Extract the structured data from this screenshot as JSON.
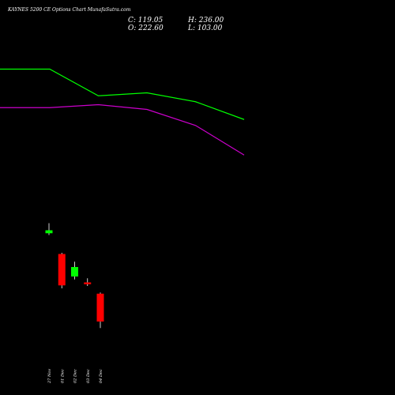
{
  "chart_data": {
    "type": "candlestick",
    "title": "KAYNES 5200  CE Options  Chart MunafaSutra.com",
    "ohlc_readout": {
      "c_label": "C: 119.05",
      "h_label": "H: 236.00",
      "o_label": "O: 222.60",
      "l_label": "L: 103.00"
    },
    "categories": [
      "27 Nov",
      "01 Dec",
      "02 Dec",
      "03 Dec",
      "04 Dec"
    ],
    "candles": [
      {
        "date": "27 Nov",
        "open": 253,
        "high": 270,
        "low": 250,
        "close": 258,
        "color": "#00ff00"
      },
      {
        "date": "01 Dec",
        "open": 218,
        "high": 220,
        "low": 160,
        "close": 165,
        "color": "#ff0000"
      },
      {
        "date": "02 Dec",
        "open": 180,
        "high": 205,
        "low": 175,
        "close": 196,
        "color": "#00ff00"
      },
      {
        "date": "03 Dec",
        "open": 170,
        "high": 177,
        "low": 164,
        "close": 167,
        "color": "#ff0000"
      },
      {
        "date": "04 Dec",
        "open": 151,
        "high": 153,
        "low": 93,
        "close": 104,
        "color": "#ff0000"
      }
    ],
    "ma_series": [
      {
        "color": "#00ff00",
        "points": [
          [
            -1.2,
            530
          ],
          [
            0.0,
            530
          ],
          [
            1.0,
            485
          ],
          [
            2.0,
            490
          ],
          [
            3.0,
            475
          ],
          [
            4.0,
            445
          ]
        ]
      },
      {
        "color": "#cc00cc",
        "points": [
          [
            -1.2,
            465
          ],
          [
            0.0,
            465
          ],
          [
            1.0,
            470
          ],
          [
            2.0,
            462
          ],
          [
            3.0,
            435
          ],
          [
            4.0,
            385
          ]
        ]
      }
    ],
    "ylim": [
      0,
      600
    ],
    "grid": false,
    "background": "#000000"
  }
}
